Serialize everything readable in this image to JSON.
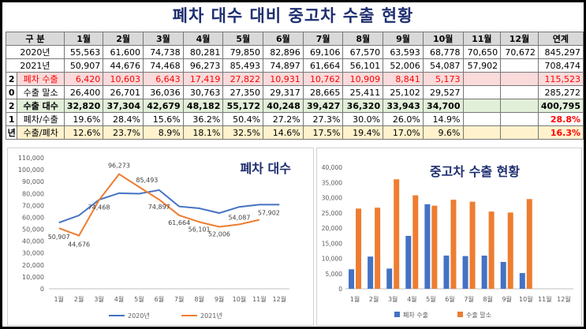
{
  "title": "폐차 대수 대비 중고차 수출 현황",
  "table": {
    "header": [
      "구 분",
      "1월",
      "2월",
      "3월",
      "4월",
      "5월",
      "6월",
      "7월",
      "8월",
      "9월",
      "10월",
      "11월",
      "12월",
      "연계"
    ],
    "side_labels": [
      "2",
      "0",
      "2",
      "1",
      "년"
    ],
    "rows": [
      {
        "label": "2020년",
        "values": [
          "55,563",
          "61,600",
          "74,738",
          "80,281",
          "79,850",
          "82,896",
          "69,106",
          "67,570",
          "63,593",
          "68,778",
          "70,650",
          "70,672",
          "845,297"
        ]
      },
      {
        "label": "2021년",
        "values": [
          "50,907",
          "44,676",
          "74,468",
          "96,273",
          "85,493",
          "74,897",
          "61,664",
          "56,101",
          "52,006",
          "54,087",
          "57,902",
          "",
          "708,474"
        ]
      },
      {
        "label": "폐차 수출",
        "values": [
          "6,420",
          "10,603",
          "6,643",
          "17,419",
          "27,822",
          "10,931",
          "10,762",
          "10,909",
          "8,841",
          "5,173",
          "",
          "",
          "115,523"
        ]
      },
      {
        "label": "수출 말소",
        "values": [
          "26,400",
          "26,701",
          "36,036",
          "30,763",
          "27,350",
          "29,317",
          "28,665",
          "25,411",
          "25,102",
          "29,527",
          "",
          "",
          "285,272"
        ]
      },
      {
        "label": "수출 대수",
        "values": [
          "32,820",
          "37,304",
          "42,679",
          "48,182",
          "55,172",
          "40,248",
          "39,427",
          "36,320",
          "33,943",
          "34,700",
          "",
          "",
          "400,795"
        ]
      },
      {
        "label": "폐차/수출",
        "values": [
          "19.6%",
          "28.4%",
          "15.6%",
          "36.2%",
          "50.4%",
          "27.2%",
          "27.3%",
          "30.0%",
          "26.0%",
          "14.9%",
          "",
          "",
          "28.8%"
        ]
      },
      {
        "label": "수출/폐차",
        "values": [
          "12.6%",
          "23.7%",
          "8.9%",
          "18.1%",
          "32.5%",
          "14.6%",
          "17.5%",
          "19.4%",
          "17.0%",
          "9.6%",
          "",
          "",
          "16.3%"
        ]
      }
    ]
  },
  "colors": {
    "blue": "#4472c4",
    "orange": "#ed7d31"
  },
  "chart_data": [
    {
      "type": "line",
      "title": "폐차 대수",
      "categories": [
        "1월",
        "2월",
        "3월",
        "4월",
        "5월",
        "6월",
        "7월",
        "8월",
        "9월",
        "10월",
        "11월",
        "12월"
      ],
      "ylim": [
        0,
        110000
      ],
      "yticks": [
        "0",
        "10,000",
        "20,000",
        "30,000",
        "40,000",
        "50,000",
        "60,000",
        "70,000",
        "80,000",
        "90,000",
        "100,000",
        "110,000"
      ],
      "series": [
        {
          "name": "2020년",
          "values": [
            55563,
            61600,
            74738,
            80281,
            79850,
            82896,
            69106,
            67570,
            63593,
            68778,
            70650,
            70672
          ]
        },
        {
          "name": "2021년",
          "values": [
            50907,
            44676,
            74468,
            96273,
            85493,
            74897,
            61664,
            56101,
            52006,
            54087,
            57902,
            null
          ]
        }
      ],
      "data_labels": [
        "50,907",
        "44,676",
        "74,468",
        "96,273",
        "85,493",
        "74,897",
        "61,664",
        "56,101",
        "52,006",
        "54,087",
        "57,902"
      ],
      "legend": "bottom"
    },
    {
      "type": "bar",
      "title": "중고차 수출 현황",
      "categories": [
        "1월",
        "2월",
        "3월",
        "4월",
        "5월",
        "6월",
        "7월",
        "8월",
        "9월",
        "10월",
        "11월",
        "12월"
      ],
      "ylim": [
        0,
        40000
      ],
      "yticks": [
        "0",
        "5,000",
        "10,000",
        "15,000",
        "20,000",
        "25,000",
        "30,000",
        "35,000",
        "40,000"
      ],
      "series": [
        {
          "name": "폐차 수출",
          "values": [
            6420,
            10603,
            6643,
            17419,
            27822,
            10931,
            10762,
            10909,
            8841,
            5173,
            null,
            null
          ]
        },
        {
          "name": "수출 말소",
          "values": [
            26400,
            26701,
            36036,
            30763,
            27350,
            29317,
            28665,
            25411,
            25102,
            29527,
            null,
            null
          ]
        }
      ],
      "legend": "bottom"
    }
  ]
}
